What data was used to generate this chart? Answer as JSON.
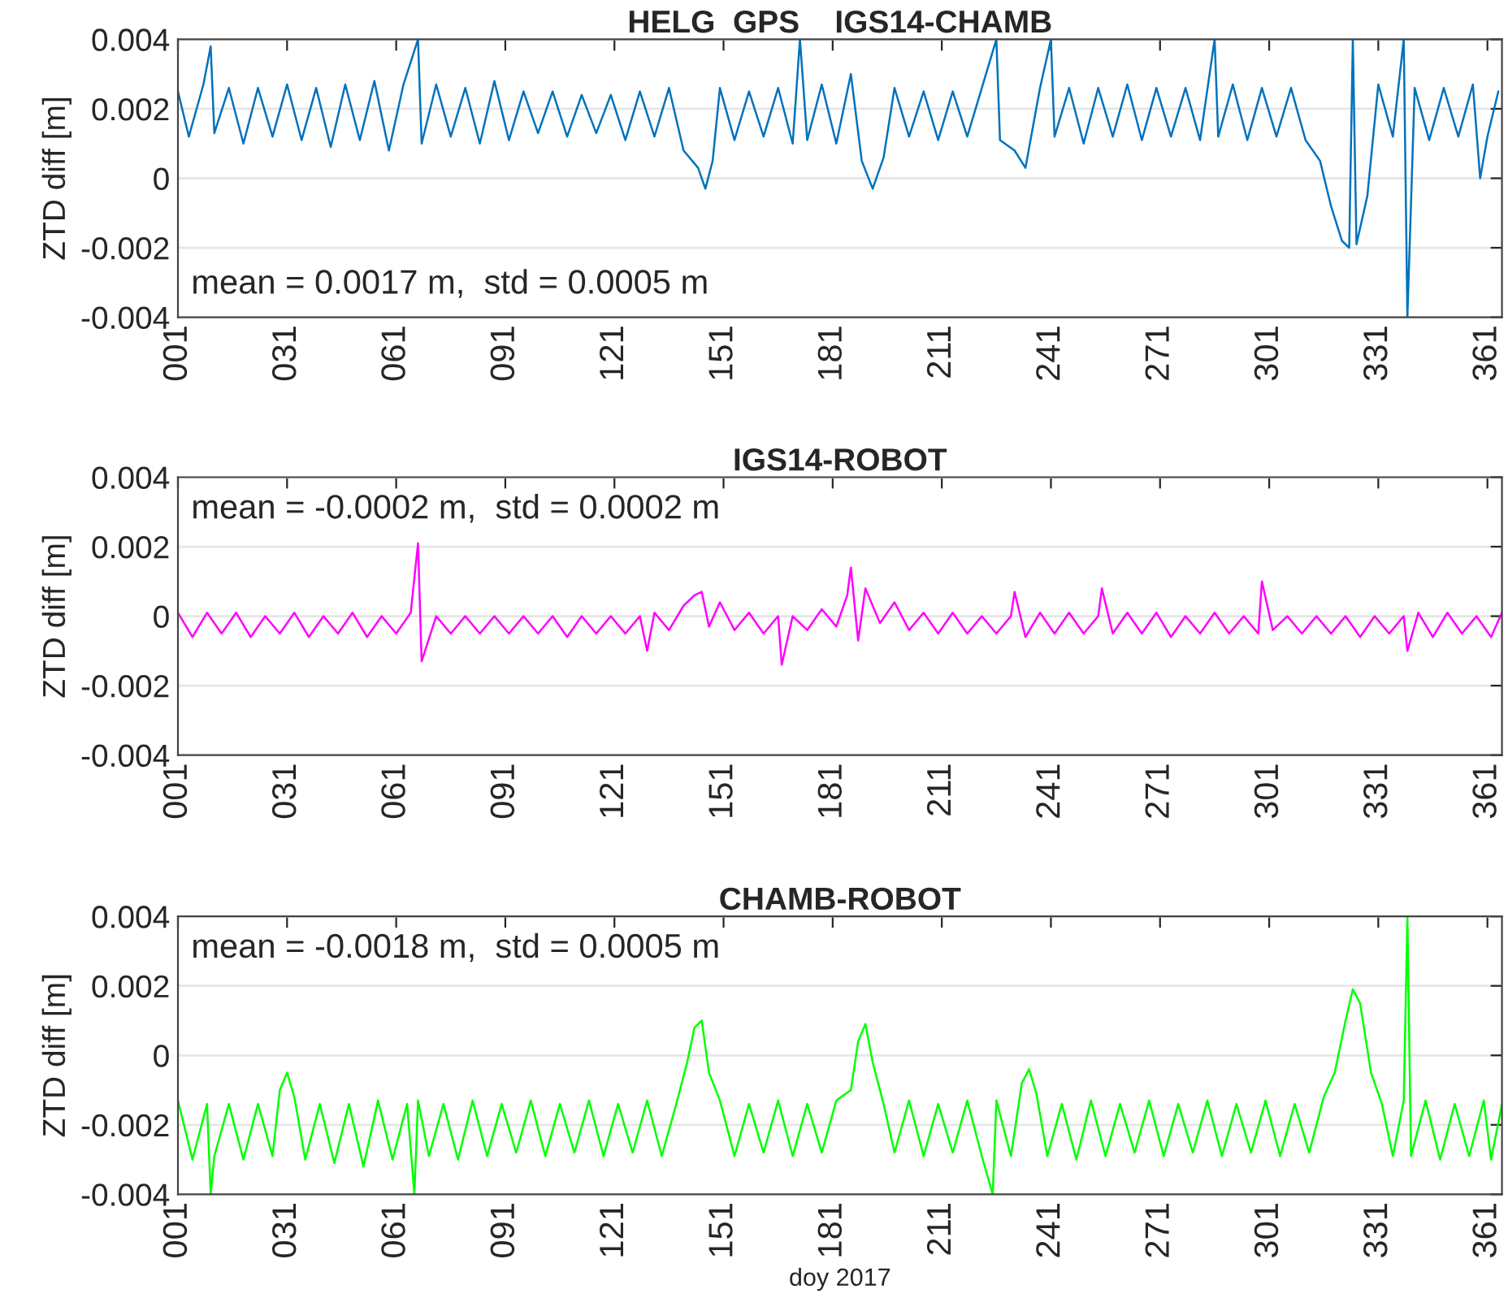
{
  "chart_data": [
    {
      "type": "line",
      "title": "HELG  GPS    IGS14-CHAMB",
      "ylabel": "ZTD diff [m]",
      "annotations": [
        "mean = 0.0017 m,  std = 0.0005 m"
      ],
      "series": [
        {
          "color": "#0072bd",
          "x": [
            1,
            4,
            8,
            10,
            11,
            15,
            19,
            23,
            27,
            31,
            35,
            39,
            43,
            47,
            51,
            55,
            59,
            63,
            67,
            68,
            72,
            76,
            80,
            84,
            88,
            92,
            96,
            100,
            104,
            108,
            112,
            116,
            120,
            124,
            128,
            132,
            136,
            140,
            144,
            146,
            148,
            150,
            154,
            158,
            162,
            166,
            170,
            172,
            174,
            178,
            182,
            186,
            189,
            192,
            195,
            198,
            202,
            206,
            210,
            214,
            218,
            222,
            226,
            227,
            231,
            234,
            238,
            241,
            242,
            246,
            250,
            254,
            258,
            262,
            266,
            270,
            274,
            278,
            282,
            286,
            287,
            291,
            295,
            299,
            303,
            307,
            311,
            315,
            318,
            321,
            323,
            324,
            325,
            328,
            331,
            335,
            338,
            339,
            341,
            345,
            349,
            353,
            357,
            359,
            361,
            364
          ],
          "values": [
            0.0025,
            0.0012,
            0.0027,
            0.0038,
            0.0013,
            0.0026,
            0.001,
            0.0026,
            0.0012,
            0.0027,
            0.0011,
            0.0026,
            0.0009,
            0.0027,
            0.0011,
            0.0028,
            0.0008,
            0.0027,
            0.004,
            0.001,
            0.0027,
            0.0012,
            0.0026,
            0.001,
            0.0028,
            0.0011,
            0.0025,
            0.0013,
            0.0025,
            0.0012,
            0.0024,
            0.0013,
            0.0024,
            0.0011,
            0.0025,
            0.0012,
            0.0026,
            0.0008,
            0.0003,
            -0.0003,
            0.0005,
            0.0026,
            0.0011,
            0.0025,
            0.0012,
            0.0026,
            0.001,
            0.004,
            0.0011,
            0.0027,
            0.001,
            0.003,
            0.0005,
            -0.0003,
            0.0006,
            0.0026,
            0.0012,
            0.0025,
            0.0011,
            0.0025,
            0.0012,
            0.0026,
            0.004,
            0.0011,
            0.0008,
            0.0003,
            0.0026,
            0.004,
            0.0012,
            0.0026,
            0.001,
            0.0026,
            0.0012,
            0.0027,
            0.0011,
            0.0026,
            0.0012,
            0.0026,
            0.0011,
            0.004,
            0.0012,
            0.0027,
            0.0011,
            0.0026,
            0.0012,
            0.0026,
            0.0011,
            0.0005,
            -0.0008,
            -0.0018,
            -0.002,
            0.004,
            -0.0019,
            -0.0005,
            0.0027,
            0.0012,
            0.004,
            -0.004,
            0.0026,
            0.0011,
            0.0026,
            0.0012,
            0.0027,
            0.0,
            0.0012,
            0.0025
          ]
        }
      ],
      "xlim": [
        1,
        365
      ],
      "ylim": [
        -0.004,
        0.004
      ],
      "yticks": [
        -0.004,
        -0.002,
        0,
        0.002,
        0.004
      ],
      "xticks": [
        {
          "value": 1,
          "label": "001"
        },
        {
          "value": 31,
          "label": "031"
        },
        {
          "value": 61,
          "label": "061"
        },
        {
          "value": 91,
          "label": "091"
        },
        {
          "value": 121,
          "label": "121"
        },
        {
          "value": 151,
          "label": "151"
        },
        {
          "value": 181,
          "label": "181"
        },
        {
          "value": 211,
          "label": "211"
        },
        {
          "value": 241,
          "label": "241"
        },
        {
          "value": 271,
          "label": "271"
        },
        {
          "value": 301,
          "label": "301"
        },
        {
          "value": 331,
          "label": "331"
        },
        {
          "value": 361,
          "label": "361"
        }
      ],
      "grid": "y",
      "legend": false
    },
    {
      "type": "line",
      "title": "IGS14-ROBOT",
      "ylabel": "ZTD diff [m]",
      "annotations": [
        "mean = -0.0002 m,  std = 0.0002 m"
      ],
      "series": [
        {
          "color": "#ff00ff",
          "x": [
            1,
            5,
            9,
            13,
            17,
            21,
            25,
            29,
            33,
            37,
            41,
            45,
            49,
            53,
            57,
            61,
            65,
            67,
            68,
            72,
            76,
            80,
            84,
            88,
            92,
            96,
            100,
            104,
            108,
            112,
            116,
            120,
            124,
            128,
            130,
            132,
            136,
            140,
            143,
            145,
            147,
            150,
            154,
            158,
            162,
            166,
            167,
            170,
            174,
            178,
            182,
            185,
            186,
            188,
            190,
            194,
            198,
            202,
            206,
            210,
            214,
            218,
            222,
            226,
            230,
            231,
            234,
            238,
            242,
            246,
            250,
            254,
            255,
            258,
            262,
            266,
            270,
            274,
            278,
            282,
            286,
            290,
            294,
            298,
            299,
            302,
            306,
            310,
            314,
            318,
            322,
            326,
            330,
            334,
            338,
            339,
            342,
            346,
            350,
            354,
            358,
            362,
            365
          ],
          "values": [
            0.0001,
            -0.0006,
            0.0001,
            -0.0005,
            0.0001,
            -0.0006,
            0.0,
            -0.0005,
            0.0001,
            -0.0006,
            0.0,
            -0.0005,
            0.0001,
            -0.0006,
            0.0,
            -0.0005,
            0.0001,
            0.0021,
            -0.0013,
            0.0,
            -0.0005,
            0.0,
            -0.0005,
            0.0,
            -0.0005,
            0.0,
            -0.0005,
            0.0,
            -0.0006,
            0.0,
            -0.0005,
            0.0,
            -0.0005,
            0.0,
            -0.001,
            0.0001,
            -0.0004,
            0.0003,
            0.0006,
            0.0007,
            -0.0003,
            0.0004,
            -0.0004,
            0.0001,
            -0.0005,
            0.0,
            -0.0014,
            0.0,
            -0.0004,
            0.0002,
            -0.0003,
            0.0006,
            0.0014,
            -0.0007,
            0.0008,
            -0.0002,
            0.0004,
            -0.0004,
            0.0001,
            -0.0005,
            0.0001,
            -0.0005,
            0.0,
            -0.0005,
            0.0,
            0.0007,
            -0.0006,
            0.0001,
            -0.0005,
            0.0001,
            -0.0005,
            0.0,
            0.0008,
            -0.0005,
            0.0001,
            -0.0005,
            0.0001,
            -0.0006,
            0.0,
            -0.0005,
            0.0001,
            -0.0005,
            0.0,
            -0.0005,
            0.001,
            -0.0004,
            0.0,
            -0.0005,
            0.0,
            -0.0005,
            0.0,
            -0.0006,
            0.0,
            -0.0005,
            0.0,
            -0.001,
            0.0001,
            -0.0006,
            0.0001,
            -0.0005,
            0.0,
            -0.0006,
            0.0001
          ]
        }
      ],
      "xlim": [
        1,
        365
      ],
      "ylim": [
        -0.004,
        0.004
      ],
      "yticks": [
        -0.004,
        -0.002,
        0,
        0.002,
        0.004
      ],
      "xticks": [
        {
          "value": 1,
          "label": "001"
        },
        {
          "value": 31,
          "label": "031"
        },
        {
          "value": 61,
          "label": "061"
        },
        {
          "value": 91,
          "label": "091"
        },
        {
          "value": 121,
          "label": "121"
        },
        {
          "value": 151,
          "label": "151"
        },
        {
          "value": 181,
          "label": "181"
        },
        {
          "value": 211,
          "label": "211"
        },
        {
          "value": 241,
          "label": "241"
        },
        {
          "value": 271,
          "label": "271"
        },
        {
          "value": 301,
          "label": "301"
        },
        {
          "value": 331,
          "label": "331"
        },
        {
          "value": 361,
          "label": "361"
        }
      ],
      "grid": "y",
      "legend": false
    },
    {
      "type": "line",
      "title": "CHAMB-ROBOT",
      "ylabel": "ZTD diff [m]",
      "xlabel": "doy 2017",
      "annotations": [
        "mean = -0.0018 m,  std = 0.0005 m"
      ],
      "series": [
        {
          "color": "#00ff00",
          "x": [
            1,
            5,
            9,
            10,
            11,
            15,
            19,
            23,
            27,
            29,
            31,
            33,
            36,
            40,
            44,
            48,
            52,
            56,
            60,
            64,
            66,
            67,
            70,
            74,
            78,
            82,
            86,
            90,
            94,
            98,
            102,
            106,
            110,
            114,
            118,
            122,
            126,
            130,
            134,
            138,
            141,
            143,
            145,
            147,
            150,
            154,
            158,
            162,
            166,
            170,
            174,
            178,
            182,
            186,
            188,
            190,
            192,
            195,
            198,
            202,
            206,
            210,
            214,
            218,
            222,
            225,
            226,
            230,
            233,
            235,
            237,
            240,
            244,
            248,
            252,
            256,
            260,
            264,
            268,
            272,
            276,
            280,
            284,
            288,
            292,
            296,
            300,
            304,
            308,
            312,
            316,
            319,
            322,
            324,
            326,
            329,
            332,
            335,
            338,
            339,
            340,
            344,
            348,
            352,
            356,
            360,
            362,
            365
          ],
          "values": [
            -0.0013,
            -0.003,
            -0.0014,
            -0.004,
            -0.0029,
            -0.0014,
            -0.003,
            -0.0014,
            -0.0029,
            -0.001,
            -0.0005,
            -0.0012,
            -0.003,
            -0.0014,
            -0.0031,
            -0.0014,
            -0.0032,
            -0.0013,
            -0.003,
            -0.0014,
            -0.004,
            -0.0013,
            -0.0029,
            -0.0014,
            -0.003,
            -0.0013,
            -0.0029,
            -0.0014,
            -0.0028,
            -0.0013,
            -0.0029,
            -0.0014,
            -0.0028,
            -0.0013,
            -0.0029,
            -0.0014,
            -0.0028,
            -0.0013,
            -0.0029,
            -0.0014,
            -0.0002,
            0.0008,
            0.001,
            -0.0005,
            -0.0013,
            -0.0029,
            -0.0014,
            -0.0028,
            -0.0013,
            -0.0029,
            -0.0014,
            -0.0028,
            -0.0013,
            -0.001,
            0.0004,
            0.0009,
            -0.0002,
            -0.0014,
            -0.0028,
            -0.0013,
            -0.0029,
            -0.0014,
            -0.0028,
            -0.0013,
            -0.0029,
            -0.004,
            -0.0013,
            -0.0029,
            -0.0008,
            -0.0004,
            -0.0011,
            -0.0029,
            -0.0014,
            -0.003,
            -0.0013,
            -0.0029,
            -0.0014,
            -0.0028,
            -0.0013,
            -0.0029,
            -0.0014,
            -0.0028,
            -0.0013,
            -0.0029,
            -0.0014,
            -0.0028,
            -0.0013,
            -0.0029,
            -0.0014,
            -0.0028,
            -0.0012,
            -0.0005,
            0.001,
            0.0019,
            0.0015,
            -0.0005,
            -0.0014,
            -0.0029,
            -0.0013,
            0.004,
            -0.0029,
            -0.0013,
            -0.003,
            -0.0014,
            -0.0029,
            -0.0013,
            -0.003,
            -0.0014
          ]
        }
      ],
      "xlim": [
        1,
        365
      ],
      "ylim": [
        -0.004,
        0.004
      ],
      "yticks": [
        -0.004,
        -0.002,
        0,
        0.002,
        0.004
      ],
      "xticks": [
        {
          "value": 1,
          "label": "001"
        },
        {
          "value": 31,
          "label": "031"
        },
        {
          "value": 61,
          "label": "061"
        },
        {
          "value": 91,
          "label": "091"
        },
        {
          "value": 121,
          "label": "121"
        },
        {
          "value": 151,
          "label": "151"
        },
        {
          "value": 181,
          "label": "181"
        },
        {
          "value": 211,
          "label": "211"
        },
        {
          "value": 241,
          "label": "241"
        },
        {
          "value": 271,
          "label": "271"
        },
        {
          "value": 301,
          "label": "301"
        },
        {
          "value": 331,
          "label": "331"
        },
        {
          "value": 361,
          "label": "361"
        }
      ],
      "grid": "y",
      "legend": false
    }
  ]
}
